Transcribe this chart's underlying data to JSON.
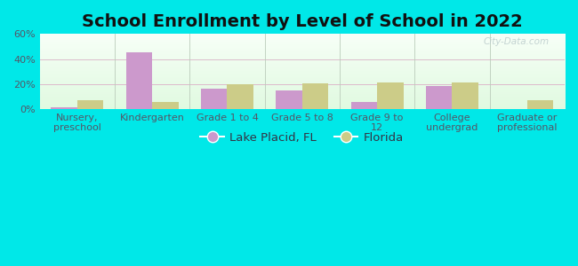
{
  "title": "School Enrollment by Level of School in 2022",
  "categories": [
    "Nursery,\npreschool",
    "Kindergarten",
    "Grade 1 to 4",
    "Grade 5 to 8",
    "Grade 9 to\n12",
    "College\nundergrad",
    "Graduate or\nprofessional"
  ],
  "lake_placid": [
    1.5,
    45.0,
    16.0,
    15.0,
    5.5,
    18.5,
    0.0
  ],
  "florida": [
    7.0,
    6.0,
    19.5,
    20.5,
    21.5,
    21.5,
    7.0
  ],
  "lake_placid_color": "#cc99cc",
  "florida_color": "#cccc88",
  "background_outer": "#00e8e8",
  "ylim": [
    0,
    60
  ],
  "yticks": [
    0,
    20,
    40,
    60
  ],
  "ytick_labels": [
    "0%",
    "20%",
    "40%",
    "60%"
  ],
  "bar_width": 0.35,
  "legend_label_1": "Lake Placid, FL",
  "legend_label_2": "Florida",
  "watermark": "City-Data.com",
  "title_fontsize": 14,
  "tick_fontsize": 8,
  "legend_fontsize": 9.5,
  "divider_color": "#bbccbb",
  "grid_color": "#ddeecc"
}
